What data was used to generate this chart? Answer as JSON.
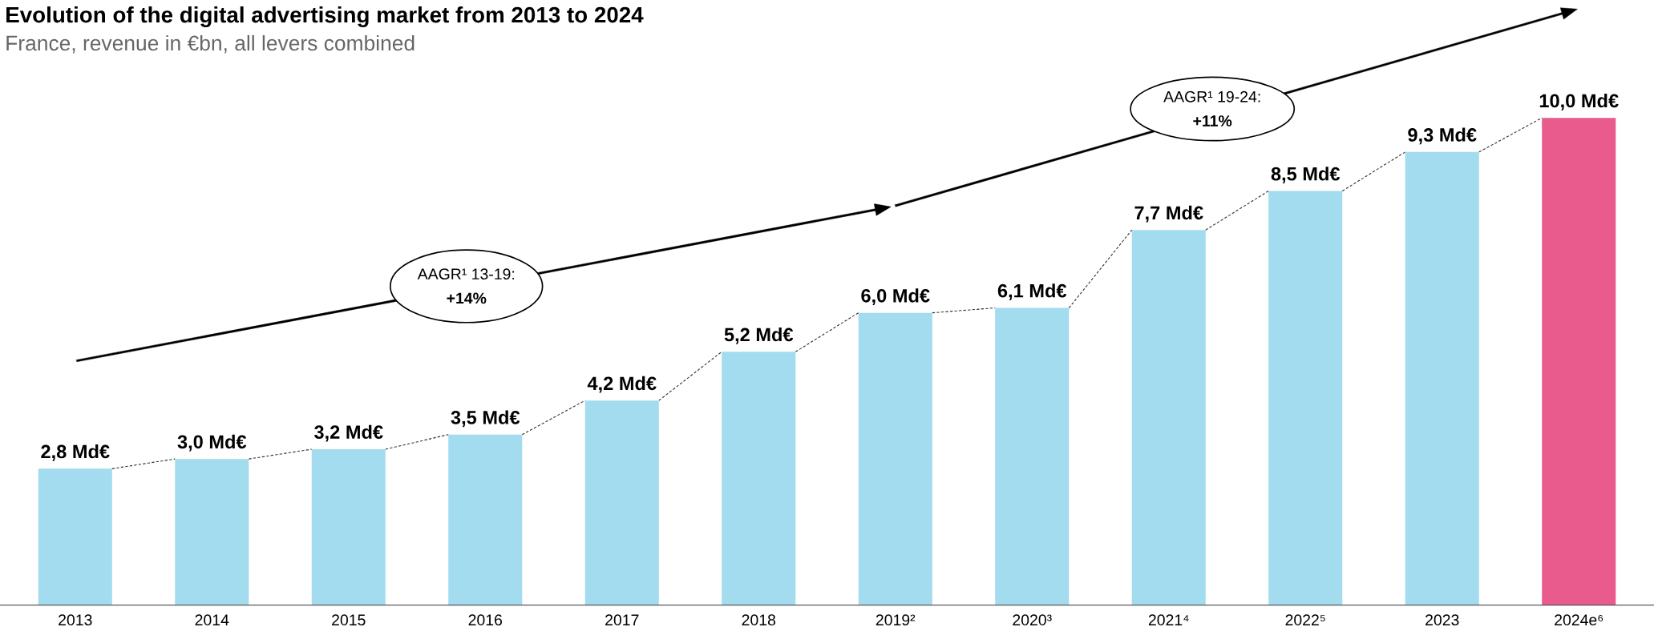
{
  "chart_data": {
    "type": "bar",
    "title": "Evolution of the digital advertising market from 2013 to 2024",
    "subtitle": "France, revenue in €bn, all levers combined",
    "categories": [
      "2013",
      "2014",
      "2015",
      "2016",
      "2017",
      "2018",
      "2019²",
      "2020³",
      "2021⁴",
      "2022⁵",
      "2023",
      "2024e⁶"
    ],
    "values": [
      2.8,
      3.0,
      3.2,
      3.5,
      4.2,
      5.2,
      6.0,
      6.1,
      7.7,
      8.5,
      9.3,
      10.0
    ],
    "colors": [
      "#a2dcee",
      "#a2dcee",
      "#a2dcee",
      "#a2dcee",
      "#a2dcee",
      "#a2dcee",
      "#a2dcee",
      "#a2dcee",
      "#a2dcee",
      "#a2dcee",
      "#a2dcee",
      "#e95b8c"
    ],
    "value_labels": [
      "2,8 Md€",
      "3,0 Md€",
      "3,2 Md€",
      "3,5 Md€",
      "4,2 Md€",
      "5,2 Md€",
      "6,0 Md€",
      "6,1 Md€",
      "7,7 Md€",
      "8,5 Md€",
      "9,3 Md€",
      "10,0 Md€"
    ],
    "annotations": [
      "AAGR¹ 13-19:",
      "+14%",
      "AAGR¹ 19-24:",
      "+11%"
    ],
    "grid": false,
    "legend": false
  }
}
